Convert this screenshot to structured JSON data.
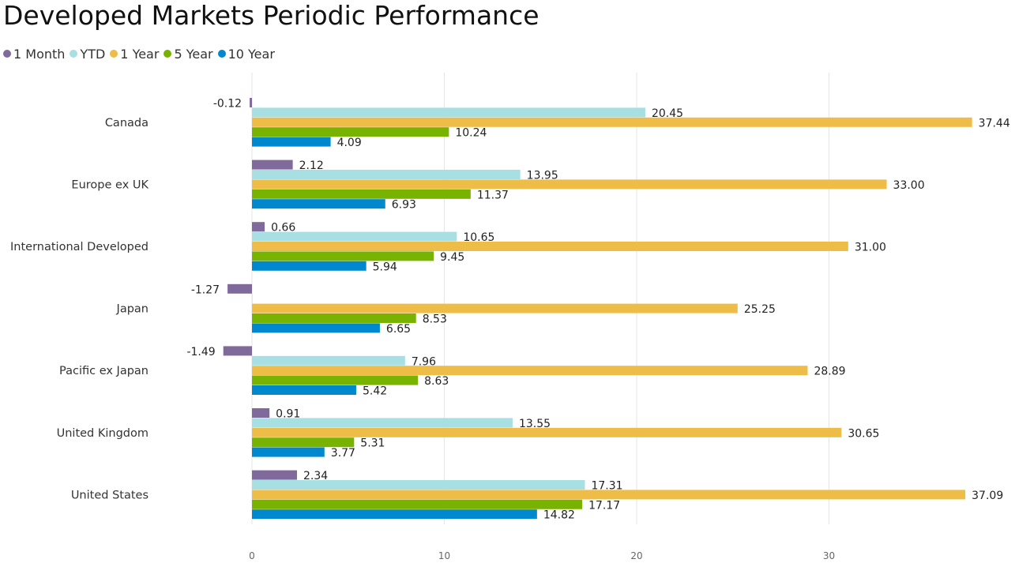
{
  "title": "Developed Markets Periodic Performance",
  "chart_data": {
    "type": "bar",
    "orientation": "horizontal",
    "title": "Developed Markets Periodic Performance",
    "xlabel": "",
    "ylabel": "",
    "categories": [
      "Canada",
      "Europe ex UK",
      "International Developed",
      "Japan",
      "Pacific ex Japan",
      "United Kingdom",
      "United States"
    ],
    "series": [
      {
        "name": "1 Month",
        "color": "#80699b",
        "values": [
          -0.12,
          2.12,
          0.66,
          -1.27,
          -1.49,
          0.91,
          2.34
        ],
        "labels": [
          "-0.12",
          "2.12",
          "0.66",
          "-1.27",
          "-1.49",
          "0.91",
          "2.34"
        ]
      },
      {
        "name": "YTD",
        "color": "#a8dfe3",
        "values": [
          20.45,
          13.95,
          10.65,
          0,
          7.96,
          13.55,
          17.31
        ],
        "labels": [
          "20.45",
          "13.95",
          "10.65",
          "",
          "7.96",
          "13.55",
          "17.31"
        ]
      },
      {
        "name": "1 Year",
        "color": "#eebd48",
        "values": [
          37.44,
          33.0,
          31.0,
          25.25,
          28.89,
          30.65,
          37.09
        ],
        "labels": [
          "37.44",
          "33.00",
          "31.00",
          "25.25",
          "28.89",
          "30.65",
          "37.09"
        ]
      },
      {
        "name": "5 Year",
        "color": "#77b300",
        "values": [
          10.24,
          11.37,
          9.45,
          8.53,
          8.63,
          5.31,
          17.17
        ],
        "labels": [
          "10.24",
          "11.37",
          "9.45",
          "8.53",
          "8.63",
          "5.31",
          "17.17"
        ]
      },
      {
        "name": "10 Year",
        "color": "#0088cf",
        "values": [
          4.09,
          6.93,
          5.94,
          6.65,
          5.42,
          3.77,
          14.82
        ],
        "labels": [
          "4.09",
          "6.93",
          "5.94",
          "6.65",
          "5.42",
          "3.77",
          "14.82"
        ]
      }
    ],
    "xlim": [
      -1.49,
      38
    ],
    "xticks": [
      0,
      10,
      20,
      30
    ],
    "xtick_labels": [
      "0",
      "10",
      "20",
      "30"
    ],
    "grid": true,
    "legend_position": "top-left"
  }
}
